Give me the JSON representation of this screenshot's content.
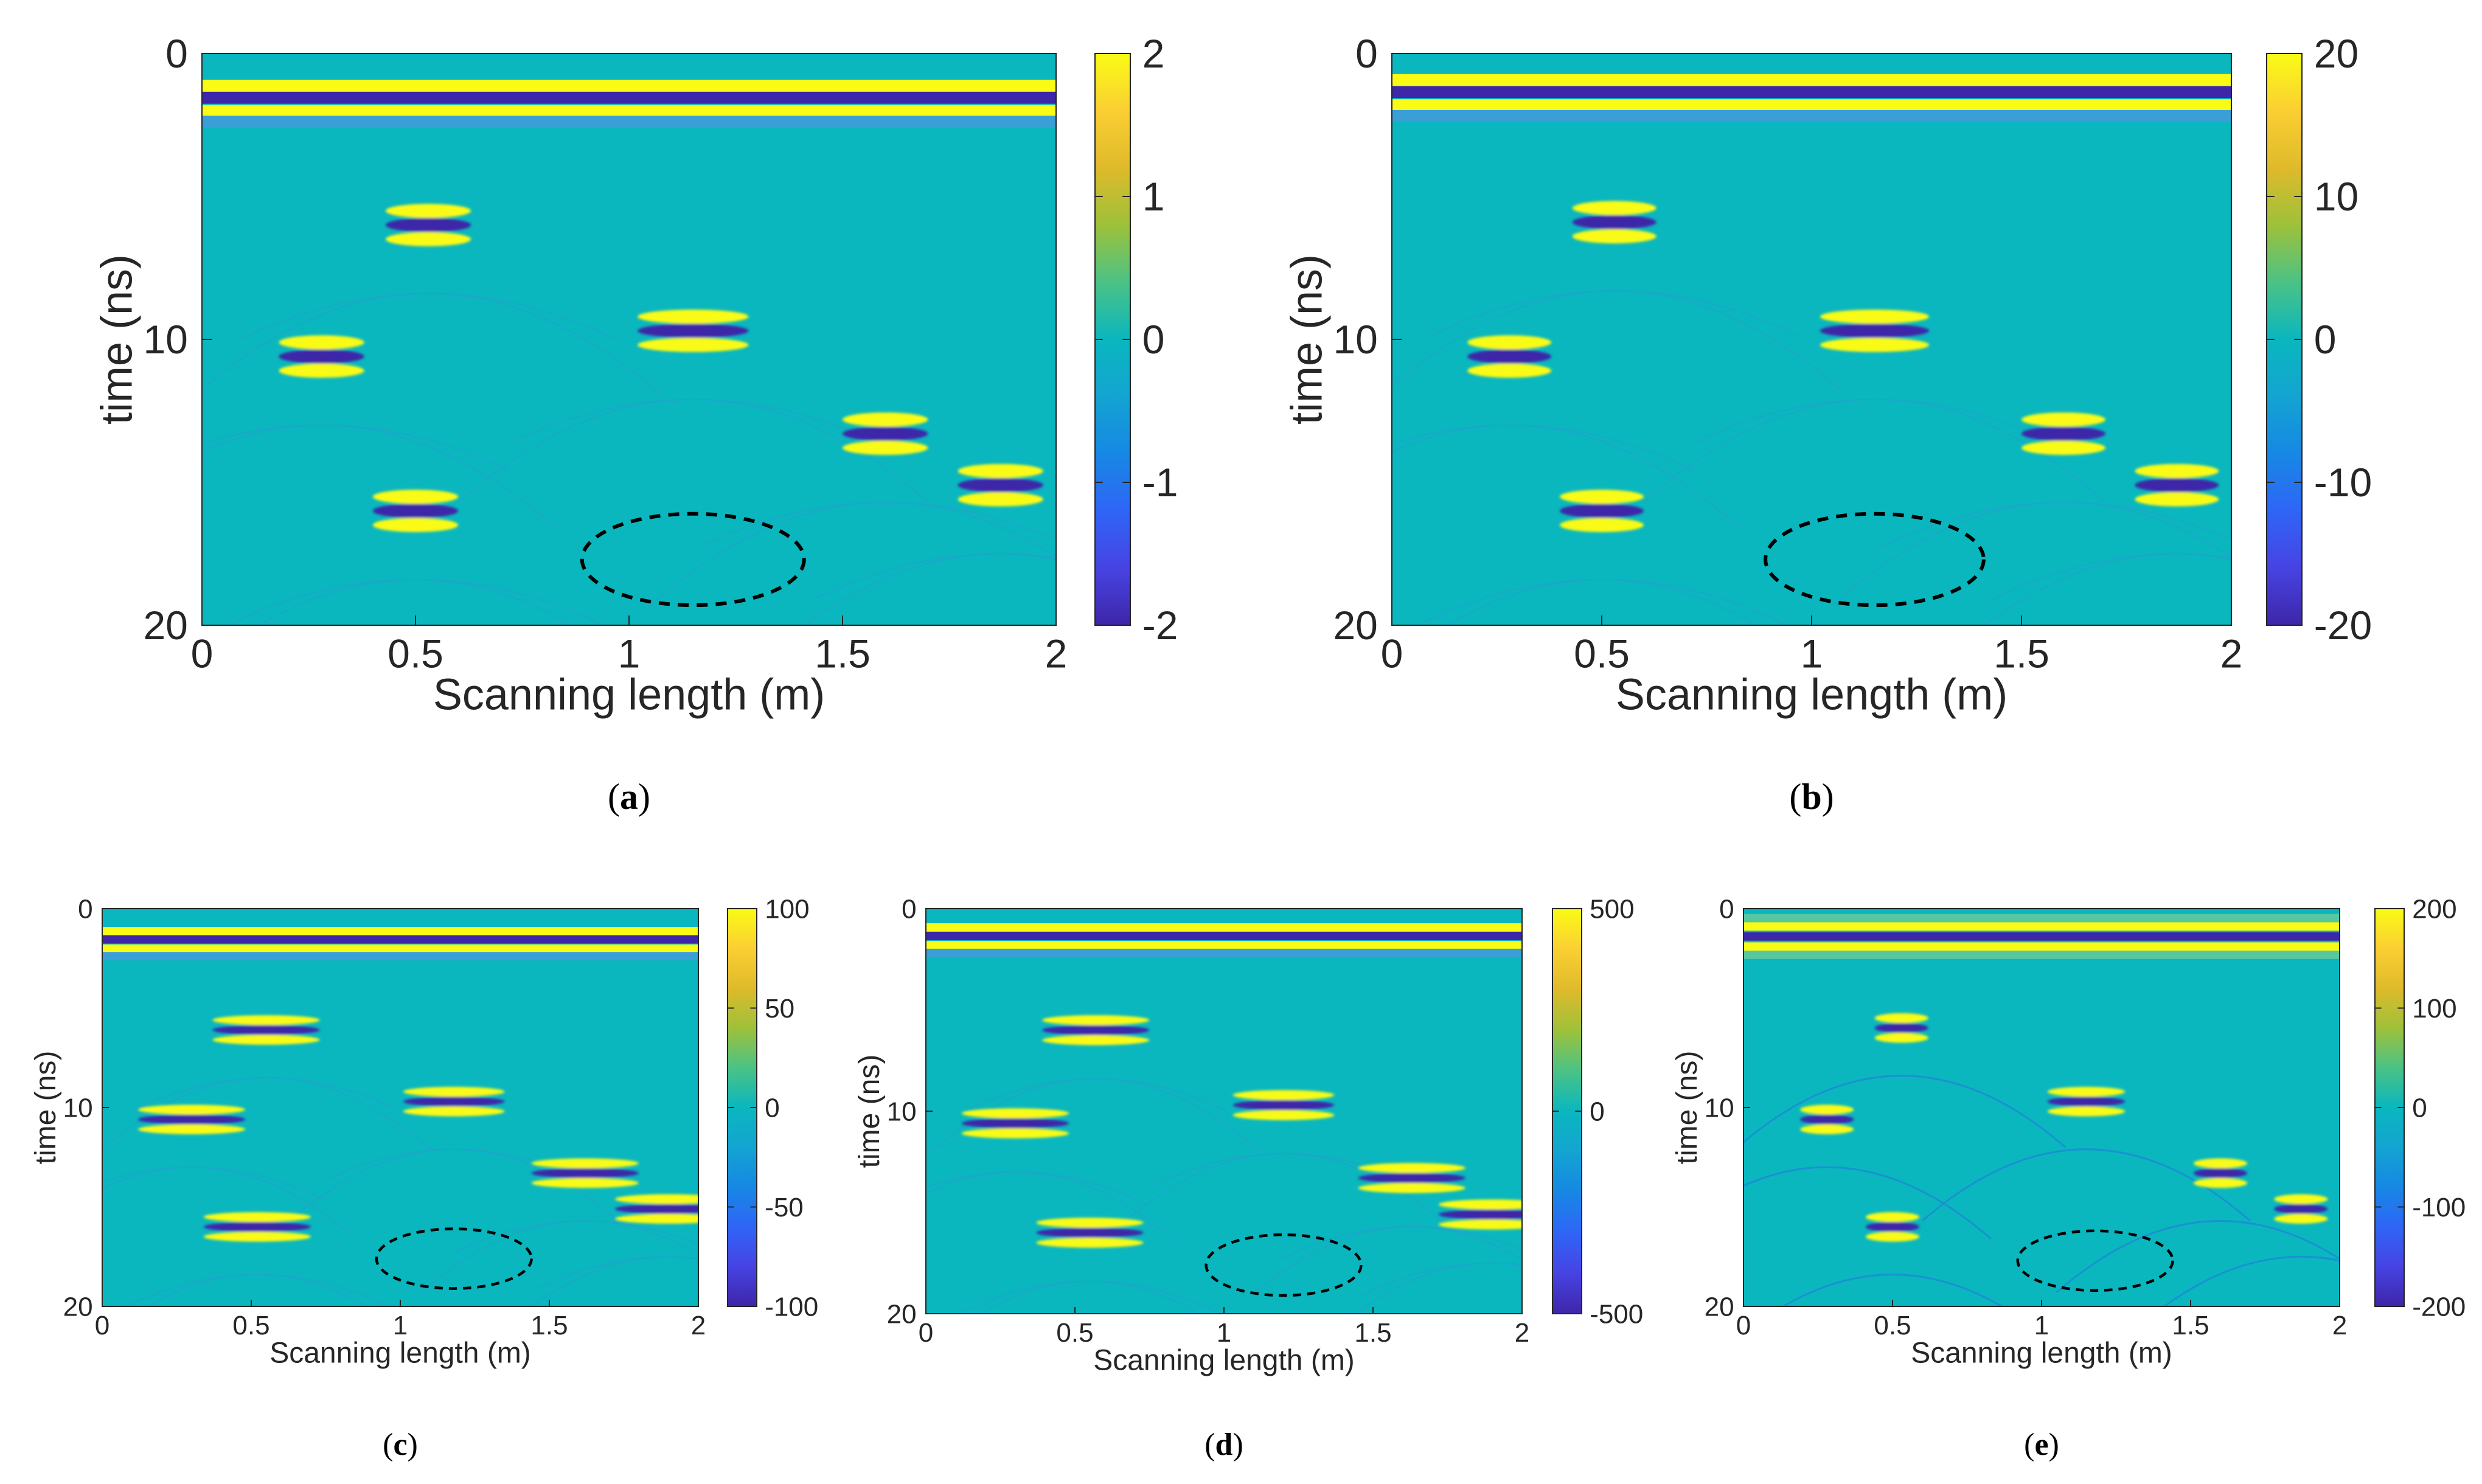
{
  "colors": {
    "background": "#ffffff",
    "colormap": [
      "#3e26a8",
      "#4743e3",
      "#2f65f6",
      "#1688e4",
      "#14a4d1",
      "#0ab7be",
      "#4bc285",
      "#9ec13a",
      "#dfba2b",
      "#fbcf33",
      "#f9fb15"
    ],
    "ellipse": "#000000",
    "axis": "#262626"
  },
  "chart_data": [
    {
      "panel": "a",
      "caption": "(a)",
      "type": "heatmap",
      "xlabel": "Scanning length (m)",
      "ylabel": "time (ns)",
      "xlim": [
        0,
        2
      ],
      "ylim": [
        0,
        20
      ],
      "y_reversed": true,
      "xticks": [
        "0",
        "0.5",
        "1",
        "1.5",
        "2"
      ],
      "yticks": [
        "0",
        "10",
        "20"
      ],
      "colorbar": {
        "range": [
          -2,
          2
        ],
        "ticks": [
          "2",
          "1",
          "0",
          "-1",
          "-2"
        ]
      },
      "direct_wave_time_ns": 1.8,
      "targets": [
        {
          "x_m": 0.53,
          "t_ns": 6.0
        },
        {
          "x_m": 0.28,
          "t_ns": 10.6
        },
        {
          "x_m": 1.15,
          "t_ns": 9.7
        },
        {
          "x_m": 0.5,
          "t_ns": 16.0
        },
        {
          "x_m": 1.6,
          "t_ns": 13.3
        },
        {
          "x_m": 1.87,
          "t_ns": 15.1
        }
      ],
      "highlight_ellipse": {
        "center_x_m": 1.15,
        "center_t_ns": 17.7,
        "rx_m": 0.26,
        "ry_ns": 1.6
      }
    },
    {
      "panel": "b",
      "caption": "(b)",
      "type": "heatmap",
      "xlabel": "Scanning length (m)",
      "ylabel": "time (ns)",
      "xlim": [
        0,
        2
      ],
      "ylim": [
        0,
        20
      ],
      "y_reversed": true,
      "xticks": [
        "0",
        "0.5",
        "1",
        "1.5",
        "2"
      ],
      "yticks": [
        "0",
        "10",
        "20"
      ],
      "colorbar": {
        "range": [
          -20,
          20
        ],
        "ticks": [
          "20",
          "10",
          "0",
          "-10",
          "-20"
        ]
      },
      "direct_wave_time_ns": 1.6,
      "targets": [
        {
          "x_m": 0.53,
          "t_ns": 5.9
        },
        {
          "x_m": 0.28,
          "t_ns": 10.6
        },
        {
          "x_m": 1.15,
          "t_ns": 9.7
        },
        {
          "x_m": 0.5,
          "t_ns": 16.0
        },
        {
          "x_m": 1.6,
          "t_ns": 13.3
        },
        {
          "x_m": 1.87,
          "t_ns": 15.1
        }
      ],
      "highlight_ellipse": {
        "center_x_m": 1.15,
        "center_t_ns": 17.7,
        "rx_m": 0.26,
        "ry_ns": 1.6
      }
    },
    {
      "panel": "c",
      "caption": "(c)",
      "type": "heatmap",
      "xlabel": "Scanning length (m)",
      "ylabel": "time (ns)",
      "xlim": [
        0,
        2
      ],
      "ylim": [
        0,
        20
      ],
      "y_reversed": true,
      "xticks": [
        "0",
        "0.5",
        "1",
        "1.5",
        "2"
      ],
      "yticks": [
        "0",
        "10",
        "20"
      ],
      "colorbar": {
        "range": [
          -100,
          100
        ],
        "ticks": [
          "100",
          "50",
          "0",
          "-50",
          "-100"
        ]
      },
      "direct_wave_time_ns": 1.8,
      "targets": [
        {
          "x_m": 0.55,
          "t_ns": 6.1
        },
        {
          "x_m": 0.3,
          "t_ns": 10.6
        },
        {
          "x_m": 1.18,
          "t_ns": 9.7
        },
        {
          "x_m": 0.52,
          "t_ns": 16.0
        },
        {
          "x_m": 1.62,
          "t_ns": 13.3
        },
        {
          "x_m": 1.9,
          "t_ns": 15.1
        }
      ],
      "highlight_ellipse": {
        "center_x_m": 1.18,
        "center_t_ns": 17.6,
        "rx_m": 0.26,
        "ry_ns": 1.5
      }
    },
    {
      "panel": "d",
      "caption": "(d)",
      "type": "heatmap",
      "xlabel": "Scanning length (m)",
      "ylabel": "time (ns)",
      "xlim": [
        0,
        2
      ],
      "ylim": [
        0,
        20
      ],
      "y_reversed": true,
      "xticks": [
        "0",
        "0.5",
        "1",
        "1.5",
        "2"
      ],
      "yticks": [
        "0",
        "10",
        "20"
      ],
      "colorbar": {
        "range": [
          -500,
          500
        ],
        "ticks": [
          "500",
          "0",
          "-500"
        ]
      },
      "direct_wave_time_ns": 1.6,
      "targets": [
        {
          "x_m": 0.57,
          "t_ns": 6.0
        },
        {
          "x_m": 0.3,
          "t_ns": 10.6
        },
        {
          "x_m": 1.2,
          "t_ns": 9.7
        },
        {
          "x_m": 0.55,
          "t_ns": 16.0
        },
        {
          "x_m": 1.63,
          "t_ns": 13.3
        },
        {
          "x_m": 1.9,
          "t_ns": 15.1
        }
      ],
      "highlight_ellipse": {
        "center_x_m": 1.2,
        "center_t_ns": 17.6,
        "rx_m": 0.26,
        "ry_ns": 1.5
      }
    },
    {
      "panel": "e",
      "caption": "(e)",
      "type": "heatmap",
      "xlabel": "Scanning length (m)",
      "ylabel": "time (ns)",
      "xlim": [
        0,
        2
      ],
      "ylim": [
        0,
        20
      ],
      "y_reversed": true,
      "xticks": [
        "0",
        "0.5",
        "1",
        "1.5",
        "2"
      ],
      "yticks": [
        "0",
        "10",
        "20"
      ],
      "colorbar": {
        "range": [
          -200,
          200
        ],
        "ticks": [
          "200",
          "100",
          "0",
          "-100",
          "-200"
        ]
      },
      "direct_wave_time_ns": 1.4,
      "targets": [
        {
          "x_m": 0.53,
          "t_ns": 6.0
        },
        {
          "x_m": 0.28,
          "t_ns": 10.6
        },
        {
          "x_m": 1.15,
          "t_ns": 9.7
        },
        {
          "x_m": 0.5,
          "t_ns": 16.0
        },
        {
          "x_m": 1.6,
          "t_ns": 13.3
        },
        {
          "x_m": 1.87,
          "t_ns": 15.1
        }
      ],
      "highlight_ellipse": {
        "center_x_m": 1.18,
        "center_t_ns": 17.7,
        "rx_m": 0.26,
        "ry_ns": 1.5
      }
    }
  ]
}
